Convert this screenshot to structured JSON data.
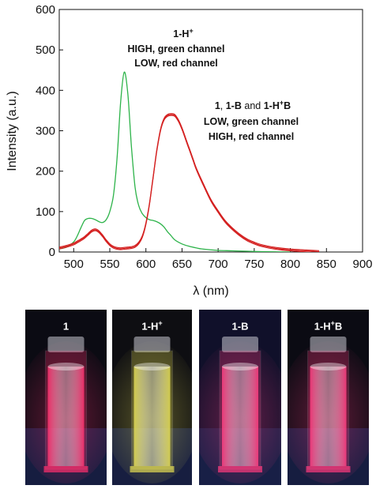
{
  "chart_data": {
    "type": "line",
    "xlabel": "λ (nm)",
    "ylabel": "Intensity (a.u.)",
    "xlim": [
      480,
      900
    ],
    "ylim": [
      0,
      600
    ],
    "xticks": [
      500,
      550,
      600,
      650,
      700,
      750,
      800,
      850,
      900
    ],
    "yticks": [
      0,
      100,
      200,
      300,
      400,
      500,
      600
    ],
    "series": [
      {
        "color": "#2db34a",
        "x": [
          480,
          490,
          500,
          505,
          510,
          515,
          520,
          525,
          530,
          535,
          540,
          545,
          550,
          555,
          560,
          565,
          570,
          575,
          580,
          585,
          590,
          595,
          600,
          605,
          610,
          615,
          620,
          625,
          630,
          635,
          640,
          650,
          660,
          670,
          680,
          700,
          720,
          740,
          760,
          800
        ],
        "values": [
          8,
          12,
          25,
          40,
          60,
          78,
          83,
          83,
          80,
          75,
          73,
          80,
          100,
          140,
          230,
          370,
          445,
          390,
          260,
          160,
          115,
          95,
          85,
          80,
          78,
          75,
          70,
          62,
          50,
          40,
          30,
          20,
          14,
          10,
          7,
          4,
          3,
          2,
          1,
          0
        ]
      },
      {
        "color": "#d42020",
        "x": [
          480,
          490,
          500,
          505,
          510,
          515,
          520,
          525,
          530,
          535,
          540,
          545,
          550,
          555,
          560,
          565,
          570,
          575,
          580,
          585,
          590,
          595,
          600,
          605,
          610,
          615,
          620,
          625,
          630,
          635,
          640,
          645,
          650,
          655,
          660,
          665,
          670,
          680,
          690,
          700,
          710,
          720,
          730,
          740,
          750,
          760,
          780,
          800,
          820,
          840
        ],
        "values": [
          10,
          14,
          20,
          25,
          30,
          36,
          44,
          52,
          55,
          50,
          40,
          28,
          18,
          12,
          9,
          8,
          9,
          10,
          11,
          14,
          22,
          38,
          70,
          120,
          185,
          250,
          300,
          328,
          338,
          340,
          338,
          325,
          305,
          280,
          255,
          230,
          205,
          165,
          128,
          100,
          75,
          57,
          42,
          30,
          22,
          16,
          9,
          5,
          3,
          1
        ]
      }
    ],
    "annotations": {
      "green": {
        "line1": "1-H",
        "line1_sup": "+",
        "line2": "HIGH, green channel",
        "line3": "LOW, red channel"
      },
      "red": {
        "p1": "1",
        "p2": ", ",
        "p3": "1-B",
        "p4": " and ",
        "p5": "1-H",
        "p5_sup": "+",
        "p6": "B",
        "line2": "LOW, green channel",
        "line3": "HIGH, red channel"
      }
    }
  },
  "photos": [
    {
      "label": "1",
      "label_sup": "",
      "label_tail": "",
      "liquid": "#ff2f6e",
      "bg": "#0b0b13"
    },
    {
      "label": "1-H",
      "label_sup": "+",
      "label_tail": "",
      "liquid": "#e3dc52",
      "bg": "#0e0e12"
    },
    {
      "label": "1-B",
      "label_sup": "",
      "label_tail": "",
      "liquid": "#ff3a7e",
      "bg": "#10102a"
    },
    {
      "label": "1-H",
      "label_sup": "+",
      "label_tail": "B",
      "liquid": "#ff3a7e",
      "bg": "#0b0b13"
    }
  ]
}
